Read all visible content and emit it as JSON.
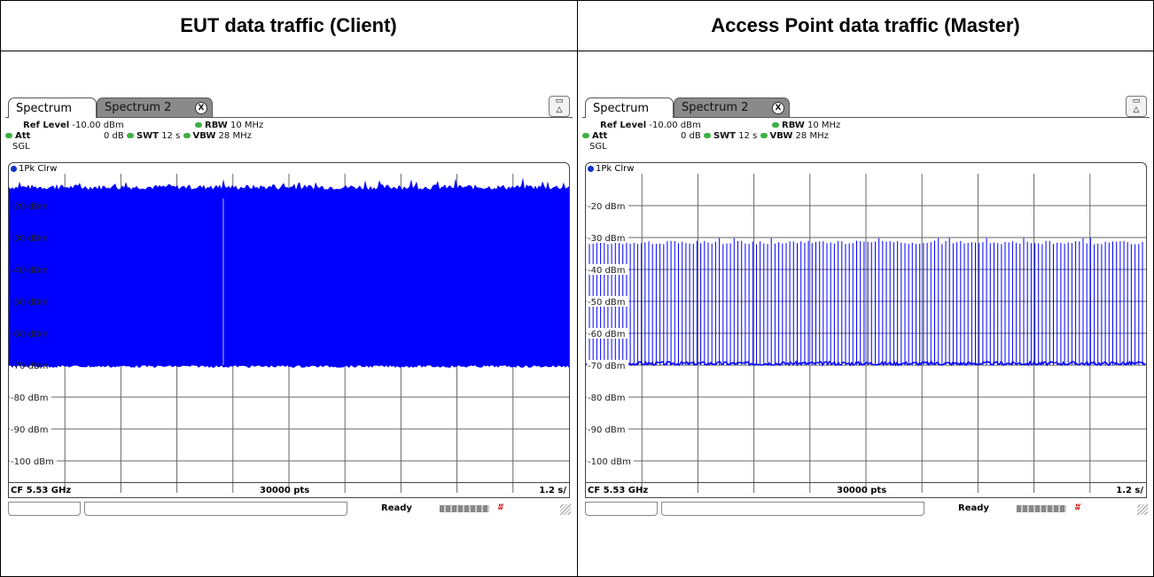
{
  "headers": {
    "left": "EUT data traffic (Client)",
    "right": "Access Point data traffic (Master)"
  },
  "panels": [
    {
      "tabs": [
        "Spectrum",
        "Spectrum 2"
      ],
      "close_glyph": "X",
      "ref_level_label": "Ref Level",
      "ref_level_value": "-10.00 dBm",
      "att_label": "Att",
      "att_value": "0 dB",
      "swt_label": "SWT",
      "swt_value": "12 s",
      "rbw_label": "RBW",
      "rbw_value": "10 MHz",
      "vbw_label": "VBW",
      "vbw_value": "28 MHz",
      "sgl": "SGL",
      "trace_label": "1Pk Clrw",
      "y_labels": [
        "-20 dBm",
        "-30 dBm",
        "-40 dBm",
        "-50 dBm",
        "-60 dBm",
        "-70 dBm",
        "-80 dBm",
        "-90 dBm",
        "-100 dBm"
      ],
      "footer_cf": "CF 5.53 GHz",
      "footer_pts": "30000 pts",
      "footer_time": "1.2 s/",
      "status": "Ready"
    },
    {
      "tabs": [
        "Spectrum",
        "Spectrum 2"
      ],
      "close_glyph": "X",
      "ref_level_label": "Ref Level",
      "ref_level_value": "-10.00 dBm",
      "att_label": "Att",
      "att_value": "0 dB",
      "swt_label": "SWT",
      "swt_value": "12 s",
      "rbw_label": "RBW",
      "rbw_value": "10 MHz",
      "vbw_label": "VBW",
      "vbw_value": "28 MHz",
      "sgl": "SGL",
      "trace_label": "1Pk Clrw",
      "y_labels": [
        "-20 dBm",
        "-30 dBm",
        "-40 dBm",
        "-50 dBm",
        "-60 dBm",
        "-70 dBm",
        "-80 dBm",
        "-90 dBm",
        "-100 dBm"
      ],
      "footer_cf": "CF 5.53 GHz",
      "footer_pts": "30000 pts",
      "footer_time": "1.2 s/",
      "status": "Ready"
    }
  ],
  "chart_data": [
    {
      "type": "line",
      "title": "",
      "x_unit": "s",
      "x_range": [
        0,
        12
      ],
      "ylim": [
        -110,
        -10
      ],
      "grid": true,
      "series": [
        {
          "color": "#0000ff",
          "floor_dbm": -70,
          "ceiling_dbm": -14,
          "dense_top_dbm": -15
        }
      ]
    },
    {
      "type": "line",
      "title": "",
      "x_unit": "s",
      "x_range": [
        0,
        12
      ],
      "ylim": [
        -110,
        -10
      ],
      "grid": true,
      "series": [
        {
          "color": "#0000ff",
          "floor_dbm": -70,
          "pulse_peak_dbm": -31,
          "pulse_count": 150
        }
      ]
    }
  ]
}
